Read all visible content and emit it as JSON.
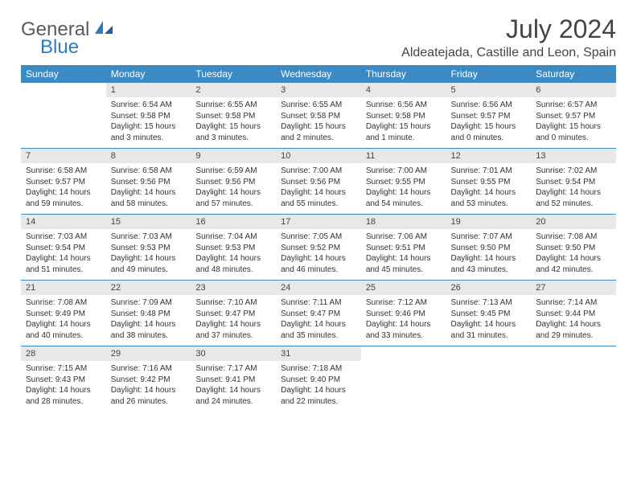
{
  "logo": {
    "part1": "General",
    "part2": "Blue"
  },
  "title": "July 2024",
  "location": "Aldeatejada, Castille and Leon, Spain",
  "colors": {
    "header_bg": "#3b8ac4",
    "header_text": "#ffffff",
    "daynum_bg": "#e8e8e8",
    "rule": "#3b8ac4",
    "body_text": "#333333",
    "title_text": "#444444",
    "logo_gray": "#5a5a5a",
    "logo_blue": "#2f7bbf"
  },
  "weekdays": [
    "Sunday",
    "Monday",
    "Tuesday",
    "Wednesday",
    "Thursday",
    "Friday",
    "Saturday"
  ],
  "weeks": [
    [
      null,
      {
        "n": "1",
        "sr": "6:54 AM",
        "ss": "9:58 PM",
        "dl": "15 hours and 3 minutes."
      },
      {
        "n": "2",
        "sr": "6:55 AM",
        "ss": "9:58 PM",
        "dl": "15 hours and 3 minutes."
      },
      {
        "n": "3",
        "sr": "6:55 AM",
        "ss": "9:58 PM",
        "dl": "15 hours and 2 minutes."
      },
      {
        "n": "4",
        "sr": "6:56 AM",
        "ss": "9:58 PM",
        "dl": "15 hours and 1 minute."
      },
      {
        "n": "5",
        "sr": "6:56 AM",
        "ss": "9:57 PM",
        "dl": "15 hours and 0 minutes."
      },
      {
        "n": "6",
        "sr": "6:57 AM",
        "ss": "9:57 PM",
        "dl": "15 hours and 0 minutes."
      }
    ],
    [
      {
        "n": "7",
        "sr": "6:58 AM",
        "ss": "9:57 PM",
        "dl": "14 hours and 59 minutes."
      },
      {
        "n": "8",
        "sr": "6:58 AM",
        "ss": "9:56 PM",
        "dl": "14 hours and 58 minutes."
      },
      {
        "n": "9",
        "sr": "6:59 AM",
        "ss": "9:56 PM",
        "dl": "14 hours and 57 minutes."
      },
      {
        "n": "10",
        "sr": "7:00 AM",
        "ss": "9:56 PM",
        "dl": "14 hours and 55 minutes."
      },
      {
        "n": "11",
        "sr": "7:00 AM",
        "ss": "9:55 PM",
        "dl": "14 hours and 54 minutes."
      },
      {
        "n": "12",
        "sr": "7:01 AM",
        "ss": "9:55 PM",
        "dl": "14 hours and 53 minutes."
      },
      {
        "n": "13",
        "sr": "7:02 AM",
        "ss": "9:54 PM",
        "dl": "14 hours and 52 minutes."
      }
    ],
    [
      {
        "n": "14",
        "sr": "7:03 AM",
        "ss": "9:54 PM",
        "dl": "14 hours and 51 minutes."
      },
      {
        "n": "15",
        "sr": "7:03 AM",
        "ss": "9:53 PM",
        "dl": "14 hours and 49 minutes."
      },
      {
        "n": "16",
        "sr": "7:04 AM",
        "ss": "9:53 PM",
        "dl": "14 hours and 48 minutes."
      },
      {
        "n": "17",
        "sr": "7:05 AM",
        "ss": "9:52 PM",
        "dl": "14 hours and 46 minutes."
      },
      {
        "n": "18",
        "sr": "7:06 AM",
        "ss": "9:51 PM",
        "dl": "14 hours and 45 minutes."
      },
      {
        "n": "19",
        "sr": "7:07 AM",
        "ss": "9:50 PM",
        "dl": "14 hours and 43 minutes."
      },
      {
        "n": "20",
        "sr": "7:08 AM",
        "ss": "9:50 PM",
        "dl": "14 hours and 42 minutes."
      }
    ],
    [
      {
        "n": "21",
        "sr": "7:08 AM",
        "ss": "9:49 PM",
        "dl": "14 hours and 40 minutes."
      },
      {
        "n": "22",
        "sr": "7:09 AM",
        "ss": "9:48 PM",
        "dl": "14 hours and 38 minutes."
      },
      {
        "n": "23",
        "sr": "7:10 AM",
        "ss": "9:47 PM",
        "dl": "14 hours and 37 minutes."
      },
      {
        "n": "24",
        "sr": "7:11 AM",
        "ss": "9:47 PM",
        "dl": "14 hours and 35 minutes."
      },
      {
        "n": "25",
        "sr": "7:12 AM",
        "ss": "9:46 PM",
        "dl": "14 hours and 33 minutes."
      },
      {
        "n": "26",
        "sr": "7:13 AM",
        "ss": "9:45 PM",
        "dl": "14 hours and 31 minutes."
      },
      {
        "n": "27",
        "sr": "7:14 AM",
        "ss": "9:44 PM",
        "dl": "14 hours and 29 minutes."
      }
    ],
    [
      {
        "n": "28",
        "sr": "7:15 AM",
        "ss": "9:43 PM",
        "dl": "14 hours and 28 minutes."
      },
      {
        "n": "29",
        "sr": "7:16 AM",
        "ss": "9:42 PM",
        "dl": "14 hours and 26 minutes."
      },
      {
        "n": "30",
        "sr": "7:17 AM",
        "ss": "9:41 PM",
        "dl": "14 hours and 24 minutes."
      },
      {
        "n": "31",
        "sr": "7:18 AM",
        "ss": "9:40 PM",
        "dl": "14 hours and 22 minutes."
      },
      null,
      null,
      null
    ]
  ],
  "labels": {
    "sunrise": "Sunrise:",
    "sunset": "Sunset:",
    "daylight": "Daylight:"
  }
}
